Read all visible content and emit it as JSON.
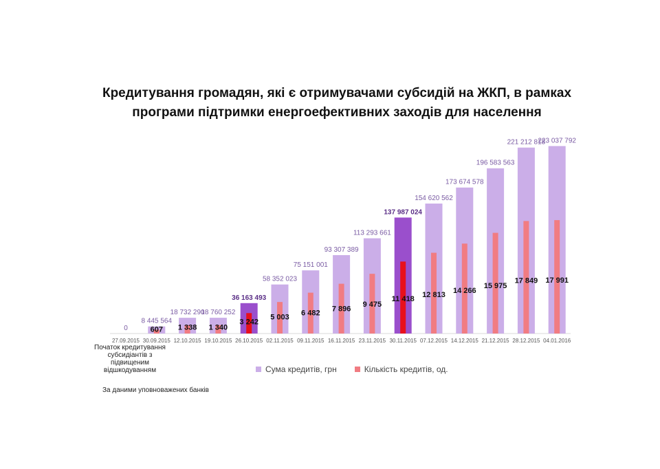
{
  "chart_data": {
    "type": "bar",
    "title_lines": [
      "Кредитування громадян, які є отримувачами субсидій на ЖКП, в рамках",
      "програми підтримки енергоефективних заходів для населення"
    ],
    "categories": [
      "27.09.2015",
      "30.09.2015",
      "12.10.2015",
      "19.10.2015",
      "26.10.2015",
      "02.11.2015",
      "09.11.2015",
      "16.11.2015",
      "23.11.2015",
      "30.11.2015",
      "07.12.2015",
      "14.12.2015",
      "21.12.2015",
      "28.12.2015",
      "04.01.2016"
    ],
    "series": [
      {
        "name": "Сума кредитів, грн",
        "values": [
          0,
          8445564,
          18732290,
          18760252,
          36163493,
          58352023,
          75151001,
          93307389,
          113293661,
          137987024,
          154620562,
          173674578,
          196583563,
          221212818,
          223037792
        ],
        "labels": [
          "0",
          "8 445 564",
          "18 732 290",
          "18 760 252",
          "36 163 493",
          "58 352 023",
          "75 151 001",
          "93 307 389",
          "113 293 661",
          "137 987 024",
          "154 620 562",
          "173 674 578",
          "196 583 563",
          "221 212 818",
          "223 037 792"
        ]
      },
      {
        "name": "Кількість кредитів, од.",
        "values": [
          0,
          607,
          1338,
          1340,
          3242,
          5003,
          6482,
          7896,
          9475,
          11418,
          12813,
          14266,
          15975,
          17849,
          17991
        ],
        "labels": [
          "",
          "607",
          "1 338",
          "1 340",
          "3 242",
          "5 003",
          "6 482",
          "7 896",
          "9 475",
          "11 418",
          "12 813",
          "14 266",
          "15 975",
          "17 849",
          "17 991"
        ]
      }
    ],
    "highlighted_categories": [
      "26.10.2015",
      "30.11.2015"
    ],
    "ylim_sum": [
      0,
      225000000
    ],
    "ylim_count": [
      0,
      30000
    ],
    "colors": {
      "sum": "#cbaee8",
      "sum_highlight": "#9a4fcc",
      "count": "#f17c82",
      "count_highlight": "#e8101c",
      "sum_label": "#7a5ba3",
      "sum_label_highlight": "#5a2e86",
      "count_label": "#111111",
      "axis": "#d9d9d9",
      "tick": "#555555"
    }
  },
  "annotation": "Початок кредитування субсидіантів з підвищеним відшкодуванням",
  "source": "За даними уповноважених банків"
}
